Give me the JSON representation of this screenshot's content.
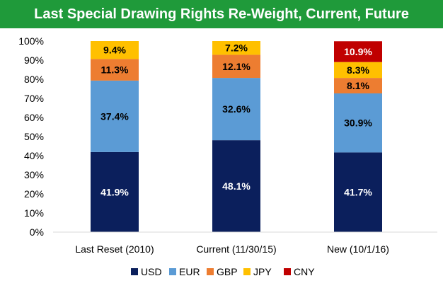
{
  "chart_data": {
    "type": "bar",
    "stacked": true,
    "title": "Last Special Drawing Rights Re-Weight, Current, Future",
    "categories": [
      "Last Reset (2010)",
      "Current (11/30/15)",
      "New (10/1/16)"
    ],
    "series": [
      {
        "name": "USD",
        "color": "#0b1f5c",
        "label_color": "#ffffff",
        "values": [
          41.9,
          48.1,
          41.7
        ]
      },
      {
        "name": "EUR",
        "color": "#5b9bd5",
        "label_color": "#000000",
        "values": [
          37.4,
          32.6,
          30.9
        ]
      },
      {
        "name": "GBP",
        "color": "#ed7d31",
        "label_color": "#000000",
        "values": [
          11.3,
          12.1,
          8.1
        ]
      },
      {
        "name": "JPY",
        "color": "#ffc000",
        "label_color": "#000000",
        "values": [
          9.4,
          7.2,
          8.3
        ]
      },
      {
        "name": "CNY",
        "color": "#c00000",
        "label_color": "#ffffff",
        "values": [
          null,
          null,
          10.9
        ]
      }
    ],
    "data_labels": [
      [
        "41.9%",
        "37.4%",
        "11.3%",
        "9.4%",
        ""
      ],
      [
        "48.1%",
        "32.6%",
        "12.1%",
        "7.2%",
        ""
      ],
      [
        "41.7%",
        "30.9%",
        "8.1%",
        "8.3%",
        "10.9%"
      ]
    ],
    "yticks": [
      "0%",
      "10%",
      "20%",
      "30%",
      "40%",
      "50%",
      "60%",
      "70%",
      "80%",
      "90%",
      "100%"
    ],
    "ylim": [
      0,
      100
    ],
    "grid": false,
    "legend_position": "bottom"
  }
}
